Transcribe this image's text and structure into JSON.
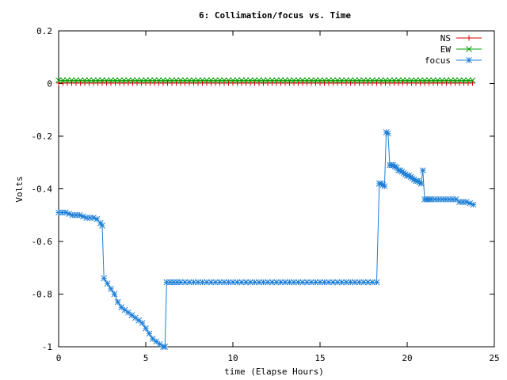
{
  "chart_data": {
    "type": "line",
    "title": "6: Collimation/focus vs. Time",
    "xlabel": "time (Elapse Hours)",
    "ylabel": "Volts",
    "xlim": [
      0,
      25
    ],
    "ylim": [
      -1,
      0.2
    ],
    "xticks": [
      {
        "value": 0,
        "label": "0"
      },
      {
        "value": 5,
        "label": "5"
      },
      {
        "value": 10,
        "label": "10"
      },
      {
        "value": 15,
        "label": "15"
      },
      {
        "value": 20,
        "label": "20"
      },
      {
        "value": 25,
        "label": "25"
      }
    ],
    "yticks": [
      {
        "value": 0.2,
        "label": "0.2"
      },
      {
        "value": 0,
        "label": "0"
      },
      {
        "value": -0.2,
        "label": "-0.2"
      },
      {
        "value": -0.4,
        "label": "-0.4"
      },
      {
        "value": -0.6,
        "label": "-0.6"
      },
      {
        "value": -0.8,
        "label": "-0.8"
      },
      {
        "value": -1,
        "label": "-1"
      }
    ],
    "grid": false,
    "legend": "top-right",
    "series": [
      {
        "name": "NS",
        "color": "#d40000",
        "marker": "plus",
        "x": [
          0,
          0.25,
          0.5,
          0.75,
          1,
          1.25,
          1.5,
          1.75,
          2,
          2.25,
          2.5,
          2.75,
          3,
          3.25,
          3.5,
          3.75,
          4,
          4.25,
          4.5,
          4.75,
          5,
          5.25,
          5.5,
          5.75,
          6,
          6.25,
          6.5,
          6.75,
          7,
          7.25,
          7.5,
          7.75,
          8,
          8.25,
          8.5,
          8.75,
          9,
          9.25,
          9.5,
          9.75,
          10,
          10.25,
          10.5,
          10.75,
          11,
          11.25,
          11.5,
          11.75,
          12,
          12.25,
          12.5,
          12.75,
          13,
          13.25,
          13.5,
          13.75,
          14,
          14.25,
          14.5,
          14.75,
          15,
          15.25,
          15.5,
          15.75,
          16,
          16.25,
          16.5,
          16.75,
          17,
          17.25,
          17.5,
          17.75,
          18,
          18.25,
          18.5,
          18.75,
          19,
          19.25,
          19.5,
          19.75,
          20,
          20.25,
          20.5,
          20.75,
          21,
          21.25,
          21.5,
          21.75,
          22,
          22.25,
          22.5,
          22.75,
          23,
          23.25,
          23.5,
          23.75
        ],
        "values": [
          0.002,
          0.002,
          0.002,
          0.002,
          0.002,
          0.002,
          0.002,
          0.002,
          0.002,
          0.002,
          0.002,
          0.002,
          0.002,
          0.002,
          0.002,
          0.002,
          0.002,
          0.002,
          0.002,
          0.002,
          0.002,
          0.002,
          0.002,
          0.002,
          0.002,
          0.002,
          0.002,
          0.002,
          0.002,
          0.002,
          0.002,
          0.002,
          0.002,
          0.002,
          0.002,
          0.002,
          0.002,
          0.002,
          0.002,
          0.002,
          0.002,
          0.002,
          0.002,
          0.002,
          0.002,
          0.002,
          0.002,
          0.002,
          0.002,
          0.002,
          0.002,
          0.002,
          0.002,
          0.002,
          0.002,
          0.002,
          0.002,
          0.002,
          0.002,
          0.002,
          0.002,
          0.002,
          0.002,
          0.002,
          0.002,
          0.002,
          0.002,
          0.002,
          0.002,
          0.002,
          0.002,
          0.002,
          0.002,
          0.002,
          0.002,
          0.002,
          0.002,
          0.002,
          0.002,
          0.002,
          0.002,
          0.002,
          0.002,
          0.002,
          0.002,
          0.002,
          0.002,
          0.002,
          0.002,
          0.002,
          0.002,
          0.002,
          0.002,
          0.002,
          0.002,
          0.002
        ]
      },
      {
        "name": "EW",
        "color": "#00a000",
        "marker": "cross",
        "x": [
          0,
          0.25,
          0.5,
          0.75,
          1,
          1.25,
          1.5,
          1.75,
          2,
          2.25,
          2.5,
          2.75,
          3,
          3.25,
          3.5,
          3.75,
          4,
          4.25,
          4.5,
          4.75,
          5,
          5.25,
          5.5,
          5.75,
          6,
          6.25,
          6.5,
          6.75,
          7,
          7.25,
          7.5,
          7.75,
          8,
          8.25,
          8.5,
          8.75,
          9,
          9.25,
          9.5,
          9.75,
          10,
          10.25,
          10.5,
          10.75,
          11,
          11.25,
          11.5,
          11.75,
          12,
          12.25,
          12.5,
          12.75,
          13,
          13.25,
          13.5,
          13.75,
          14,
          14.25,
          14.5,
          14.75,
          15,
          15.25,
          15.5,
          15.75,
          16,
          16.25,
          16.5,
          16.75,
          17,
          17.25,
          17.5,
          17.75,
          18,
          18.25,
          18.5,
          18.75,
          19,
          19.25,
          19.5,
          19.75,
          20,
          20.25,
          20.5,
          20.75,
          21,
          21.25,
          21.5,
          21.75,
          22,
          22.25,
          22.5,
          22.75,
          23,
          23.25,
          23.5,
          23.75
        ],
        "values": [
          0.012,
          0.012,
          0.012,
          0.012,
          0.012,
          0.012,
          0.012,
          0.012,
          0.012,
          0.012,
          0.012,
          0.012,
          0.012,
          0.012,
          0.012,
          0.012,
          0.012,
          0.012,
          0.012,
          0.012,
          0.012,
          0.012,
          0.012,
          0.012,
          0.012,
          0.012,
          0.012,
          0.012,
          0.012,
          0.012,
          0.012,
          0.012,
          0.012,
          0.012,
          0.012,
          0.012,
          0.012,
          0.012,
          0.012,
          0.012,
          0.012,
          0.012,
          0.012,
          0.012,
          0.012,
          0.012,
          0.012,
          0.012,
          0.012,
          0.012,
          0.012,
          0.012,
          0.012,
          0.012,
          0.012,
          0.012,
          0.012,
          0.012,
          0.012,
          0.012,
          0.012,
          0.012,
          0.012,
          0.012,
          0.012,
          0.012,
          0.012,
          0.012,
          0.012,
          0.012,
          0.012,
          0.012,
          0.012,
          0.012,
          0.012,
          0.012,
          0.012,
          0.012,
          0.012,
          0.012,
          0.012,
          0.012,
          0.012,
          0.012,
          0.012,
          0.012,
          0.012,
          0.012,
          0.012,
          0.012,
          0.012,
          0.012,
          0.012,
          0.012,
          0.012,
          0.012
        ]
      },
      {
        "name": "focus",
        "color": "#1e7fd6",
        "marker": "star",
        "x": [
          0,
          0.2,
          0.4,
          0.6,
          0.8,
          1,
          1.2,
          1.4,
          1.6,
          1.8,
          2,
          2.2,
          2.4,
          2.5,
          2.6,
          2.8,
          3,
          3.2,
          3.4,
          3.6,
          3.8,
          4,
          4.2,
          4.4,
          4.6,
          4.8,
          5,
          5.2,
          5.4,
          5.6,
          5.8,
          6,
          6.1,
          6.2,
          6.4,
          6.6,
          6.8,
          7,
          7.25,
          7.5,
          7.75,
          8,
          8.25,
          8.5,
          8.75,
          9,
          9.25,
          9.5,
          9.75,
          10,
          10.25,
          10.5,
          10.75,
          11,
          11.25,
          11.5,
          11.75,
          12,
          12.25,
          12.5,
          12.75,
          13,
          13.25,
          13.5,
          13.75,
          14,
          14.25,
          14.5,
          14.75,
          15,
          15.25,
          15.5,
          15.75,
          16,
          16.25,
          16.5,
          16.75,
          17,
          17.25,
          17.5,
          17.75,
          18,
          18.25,
          18.4,
          18.5,
          18.6,
          18.7,
          18.8,
          18.9,
          19,
          19.1,
          19.2,
          19.3,
          19.4,
          19.5,
          19.6,
          19.7,
          19.8,
          19.9,
          20,
          20.1,
          20.2,
          20.3,
          20.4,
          20.5,
          20.6,
          20.7,
          20.8,
          20.9,
          21,
          21.1,
          21.2,
          21.3,
          21.4,
          21.6,
          21.8,
          22,
          22.2,
          22.4,
          22.6,
          22.8,
          23,
          23.2,
          23.4,
          23.6,
          23.8
        ],
        "values": [
          -0.49,
          -0.49,
          -0.49,
          -0.495,
          -0.5,
          -0.5,
          -0.5,
          -0.505,
          -0.51,
          -0.51,
          -0.51,
          -0.515,
          -0.53,
          -0.54,
          -0.74,
          -0.76,
          -0.78,
          -0.8,
          -0.83,
          -0.85,
          -0.86,
          -0.87,
          -0.88,
          -0.89,
          -0.9,
          -0.91,
          -0.93,
          -0.95,
          -0.97,
          -0.98,
          -0.99,
          -1.0,
          -1.0,
          -0.755,
          -0.755,
          -0.755,
          -0.755,
          -0.755,
          -0.755,
          -0.755,
          -0.755,
          -0.755,
          -0.755,
          -0.755,
          -0.755,
          -0.755,
          -0.755,
          -0.755,
          -0.755,
          -0.755,
          -0.755,
          -0.755,
          -0.755,
          -0.755,
          -0.755,
          -0.755,
          -0.755,
          -0.755,
          -0.755,
          -0.755,
          -0.755,
          -0.755,
          -0.755,
          -0.755,
          -0.755,
          -0.755,
          -0.755,
          -0.755,
          -0.755,
          -0.755,
          -0.755,
          -0.755,
          -0.755,
          -0.755,
          -0.755,
          -0.755,
          -0.755,
          -0.755,
          -0.755,
          -0.755,
          -0.755,
          -0.755,
          -0.755,
          -0.38,
          -0.38,
          -0.385,
          -0.39,
          -0.185,
          -0.19,
          -0.31,
          -0.31,
          -0.31,
          -0.315,
          -0.32,
          -0.33,
          -0.33,
          -0.335,
          -0.34,
          -0.345,
          -0.35,
          -0.35,
          -0.355,
          -0.36,
          -0.365,
          -0.37,
          -0.37,
          -0.375,
          -0.38,
          -0.33,
          -0.44,
          -0.44,
          -0.44,
          -0.44,
          -0.44,
          -0.44,
          -0.44,
          -0.44,
          -0.44,
          -0.44,
          -0.44,
          -0.44,
          -0.45,
          -0.45,
          -0.45,
          -0.455,
          -0.46
        ]
      }
    ]
  }
}
